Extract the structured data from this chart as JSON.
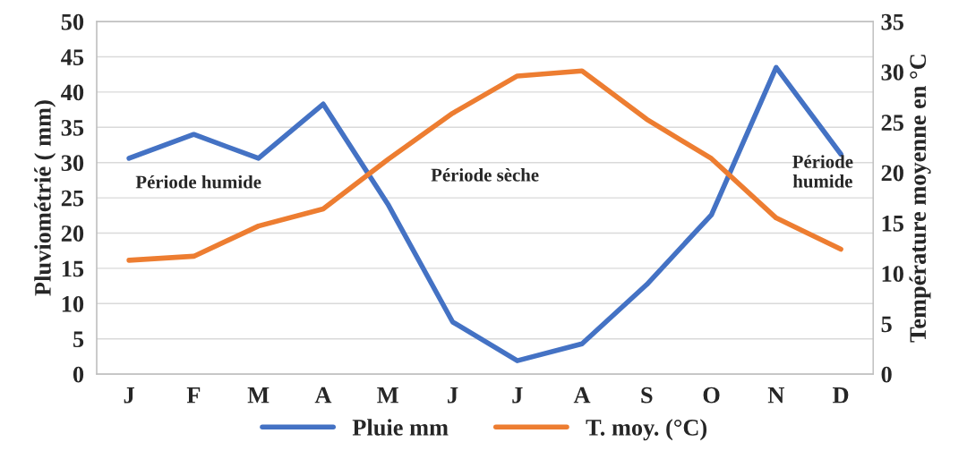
{
  "chart_data": {
    "type": "line",
    "categories": [
      "J",
      "F",
      "M",
      "A",
      "M",
      "J",
      "J",
      "A",
      "S",
      "O",
      "N",
      "D"
    ],
    "series": [
      {
        "name": "Pluie mm",
        "color": "#4472c4",
        "values": [
          30.6,
          34.0,
          30.6,
          38.3,
          24.1,
          7.4,
          1.9,
          4.3,
          12.7,
          22.6,
          43.5,
          31.2
        ]
      },
      {
        "name": "T. moy. (°C)",
        "color": "#ed7d31",
        "axis": "y2",
        "values": [
          11.3,
          11.7,
          14.7,
          16.4,
          21.3,
          25.9,
          29.6,
          30.1,
          25.3,
          21.4,
          15.5,
          12.4
        ]
      }
    ],
    "ylabel": "Pluviométrié ( mm)",
    "y2label": "Température moyenne en °C",
    "ylim": [
      0,
      50
    ],
    "yticks": [
      0,
      5,
      10,
      15,
      20,
      25,
      30,
      35,
      40,
      45,
      50
    ],
    "y2lim": [
      0,
      35
    ],
    "y2ticks": [
      0,
      5,
      10,
      15,
      20,
      25,
      30,
      35
    ],
    "grid": "y",
    "legend": "bottom",
    "marker": "none",
    "line_style": "solid",
    "annotations": [
      "Période humide",
      "Période sèche",
      "Période\nhumide"
    ]
  }
}
